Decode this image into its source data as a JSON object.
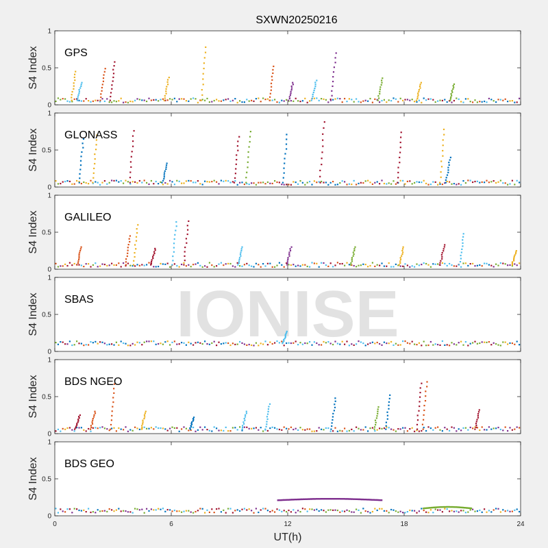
{
  "chart_data": {
    "type": "scatter",
    "title": "SXWN20250216",
    "xlabel": "UT(h)",
    "ylabel": "S4 Index",
    "xlim": [
      0,
      24
    ],
    "ylim": [
      0,
      1
    ],
    "xticks": [
      "0",
      "6",
      "12",
      "18",
      "24"
    ],
    "yticks": [
      "0",
      "0.5",
      "1"
    ],
    "watermark": "IONISE",
    "series_colors": [
      "#0072BD",
      "#D95319",
      "#EDB120",
      "#7E2F8E",
      "#77AC30",
      "#4DBEEE",
      "#A2142F"
    ],
    "panels": [
      {
        "name": "GPS",
        "baseline": 0.06,
        "peaks": [
          {
            "x": 1.1,
            "y": 0.45,
            "c": 2
          },
          {
            "x": 1.4,
            "y": 0.3,
            "c": 5
          },
          {
            "x": 2.6,
            "y": 0.49,
            "c": 1
          },
          {
            "x": 3.1,
            "y": 0.58,
            "c": 6
          },
          {
            "x": 5.9,
            "y": 0.37,
            "c": 2
          },
          {
            "x": 7.8,
            "y": 0.78,
            "c": 2
          },
          {
            "x": 11.3,
            "y": 0.52,
            "c": 1
          },
          {
            "x": 12.3,
            "y": 0.3,
            "c": 3
          },
          {
            "x": 13.5,
            "y": 0.33,
            "c": 5
          },
          {
            "x": 14.5,
            "y": 0.7,
            "c": 3
          },
          {
            "x": 16.9,
            "y": 0.36,
            "c": 4
          },
          {
            "x": 18.9,
            "y": 0.3,
            "c": 2
          },
          {
            "x": 20.6,
            "y": 0.28,
            "c": 4
          }
        ]
      },
      {
        "name": "GLONASS",
        "baseline": 0.06,
        "peaks": [
          {
            "x": 1.5,
            "y": 0.65,
            "c": 0
          },
          {
            "x": 2.2,
            "y": 0.7,
            "c": 2
          },
          {
            "x": 4.1,
            "y": 0.76,
            "c": 6
          },
          {
            "x": 5.8,
            "y": 0.32,
            "c": 0
          },
          {
            "x": 9.5,
            "y": 0.68,
            "c": 6
          },
          {
            "x": 10.1,
            "y": 0.75,
            "c": 4
          },
          {
            "x": 12.0,
            "y": 0.71,
            "c": 0
          },
          {
            "x": 13.9,
            "y": 0.88,
            "c": 6
          },
          {
            "x": 17.9,
            "y": 0.74,
            "c": 6
          },
          {
            "x": 20.1,
            "y": 0.78,
            "c": 2
          },
          {
            "x": 20.4,
            "y": 0.4,
            "c": 0
          }
        ]
      },
      {
        "name": "GALILEO",
        "baseline": 0.06,
        "peaks": [
          {
            "x": 1.4,
            "y": 0.3,
            "c": 1
          },
          {
            "x": 3.9,
            "y": 0.45,
            "c": 1
          },
          {
            "x": 4.3,
            "y": 0.6,
            "c": 2
          },
          {
            "x": 5.2,
            "y": 0.28,
            "c": 6
          },
          {
            "x": 6.3,
            "y": 0.64,
            "c": 5
          },
          {
            "x": 6.9,
            "y": 0.65,
            "c": 6
          },
          {
            "x": 9.7,
            "y": 0.3,
            "c": 5
          },
          {
            "x": 12.2,
            "y": 0.3,
            "c": 3
          },
          {
            "x": 15.5,
            "y": 0.3,
            "c": 4
          },
          {
            "x": 18.0,
            "y": 0.3,
            "c": 2
          },
          {
            "x": 20.1,
            "y": 0.33,
            "c": 6
          },
          {
            "x": 21.1,
            "y": 0.48,
            "c": 5
          },
          {
            "x": 23.8,
            "y": 0.25,
            "c": 2
          }
        ]
      },
      {
        "name": "SBAS",
        "baseline": 0.11,
        "peaks": [
          {
            "x": 12.0,
            "y": 0.27,
            "c": 5
          }
        ]
      },
      {
        "name": "BDS NGEO",
        "baseline": 0.06,
        "peaks": [
          {
            "x": 1.3,
            "y": 0.25,
            "c": 6
          },
          {
            "x": 2.1,
            "y": 0.3,
            "c": 1
          },
          {
            "x": 3.1,
            "y": 0.67,
            "c": 1
          },
          {
            "x": 4.7,
            "y": 0.3,
            "c": 2
          },
          {
            "x": 7.2,
            "y": 0.22,
            "c": 0
          },
          {
            "x": 9.9,
            "y": 0.3,
            "c": 5
          },
          {
            "x": 11.1,
            "y": 0.4,
            "c": 5
          },
          {
            "x": 14.5,
            "y": 0.48,
            "c": 0
          },
          {
            "x": 16.7,
            "y": 0.36,
            "c": 4
          },
          {
            "x": 17.3,
            "y": 0.52,
            "c": 0
          },
          {
            "x": 18.9,
            "y": 0.68,
            "c": 6
          },
          {
            "x": 19.2,
            "y": 0.7,
            "c": 1
          },
          {
            "x": 21.9,
            "y": 0.32,
            "c": 6
          }
        ]
      },
      {
        "name": "BDS GEO",
        "baseline": 0.07,
        "peaks": [],
        "arcs": [
          {
            "x0": 11.5,
            "x1": 16.9,
            "y": 0.22,
            "c": 3
          },
          {
            "x0": 19.0,
            "x1": 21.5,
            "y": 0.11,
            "c": 4
          }
        ]
      }
    ]
  }
}
